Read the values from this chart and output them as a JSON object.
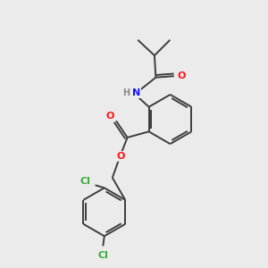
{
  "background_color": "#ebebeb",
  "bond_color": "#3d3d3d",
  "atom_colors": {
    "N": "#1414ff",
    "O": "#ff1414",
    "Cl": "#3aaa3a",
    "H": "#888888",
    "C": "#3d3d3d"
  },
  "figsize": [
    3.0,
    3.0
  ],
  "dpi": 100
}
